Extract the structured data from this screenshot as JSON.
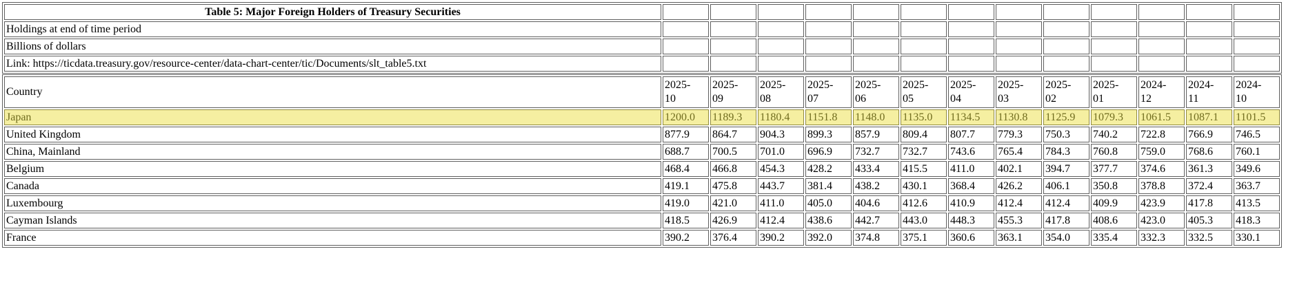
{
  "colors": {
    "highlight_bg": "#f5efa1",
    "highlight_text": "#716d1f",
    "highlight_border": "#908a3e",
    "grid_line": "#5e5e5e"
  },
  "chart_data": {
    "type": "table",
    "title": "Table 5: Major Foreign Holders of Treasury Securities",
    "notes": [
      "Holdings at end of time period",
      "Billions of dollars"
    ],
    "link_text": "Link: https://ticdata.treasury.gov/resource-center/data-chart-center/tic/Documents/slt_table5.txt",
    "row_header_label": "Country",
    "columns": [
      "2025-10",
      "2025-09",
      "2025-08",
      "2025-07",
      "2025-06",
      "2025-05",
      "2025-04",
      "2025-03",
      "2025-02",
      "2025-01",
      "2024-12",
      "2024-11",
      "2024-10"
    ],
    "rows": [
      {
        "country": "Japan",
        "highlighted": true,
        "values": [
          "1200.0",
          "1189.3",
          "1180.4",
          "1151.8",
          "1148.0",
          "1135.0",
          "1134.5",
          "1130.8",
          "1125.9",
          "1079.3",
          "1061.5",
          "1087.1",
          "1101.5"
        ]
      },
      {
        "country": "United Kingdom",
        "highlighted": false,
        "values": [
          "877.9",
          "864.7",
          "904.3",
          "899.3",
          "857.9",
          "809.4",
          "807.7",
          "779.3",
          "750.3",
          "740.2",
          "722.8",
          "766.9",
          "746.5"
        ]
      },
      {
        "country": "China, Mainland",
        "highlighted": false,
        "values": [
          "688.7",
          "700.5",
          "701.0",
          "696.9",
          "732.7",
          "732.7",
          "743.6",
          "765.4",
          "784.3",
          "760.8",
          "759.0",
          "768.6",
          "760.1"
        ]
      },
      {
        "country": "Belgium",
        "highlighted": false,
        "values": [
          "468.4",
          "466.8",
          "454.3",
          "428.2",
          "433.4",
          "415.5",
          "411.0",
          "402.1",
          "394.7",
          "377.7",
          "374.6",
          "361.3",
          "349.6"
        ]
      },
      {
        "country": "Canada",
        "highlighted": false,
        "values": [
          "419.1",
          "475.8",
          "443.7",
          "381.4",
          "438.2",
          "430.1",
          "368.4",
          "426.2",
          "406.1",
          "350.8",
          "378.8",
          "372.4",
          "363.7"
        ]
      },
      {
        "country": "Luxembourg",
        "highlighted": false,
        "values": [
          "419.0",
          "421.0",
          "411.0",
          "405.0",
          "404.6",
          "412.6",
          "410.9",
          "412.4",
          "412.4",
          "409.9",
          "423.9",
          "417.8",
          "413.5"
        ]
      },
      {
        "country": "Cayman Islands",
        "highlighted": false,
        "values": [
          "418.5",
          "426.9",
          "412.4",
          "438.6",
          "442.7",
          "443.0",
          "448.3",
          "455.3",
          "417.8",
          "408.6",
          "423.0",
          "405.3",
          "418.3"
        ]
      },
      {
        "country": "France",
        "highlighted": false,
        "values": [
          "390.2",
          "376.4",
          "390.2",
          "392.0",
          "374.8",
          "375.1",
          "360.6",
          "363.1",
          "354.0",
          "335.4",
          "332.3",
          "332.5",
          "330.1"
        ]
      }
    ]
  }
}
